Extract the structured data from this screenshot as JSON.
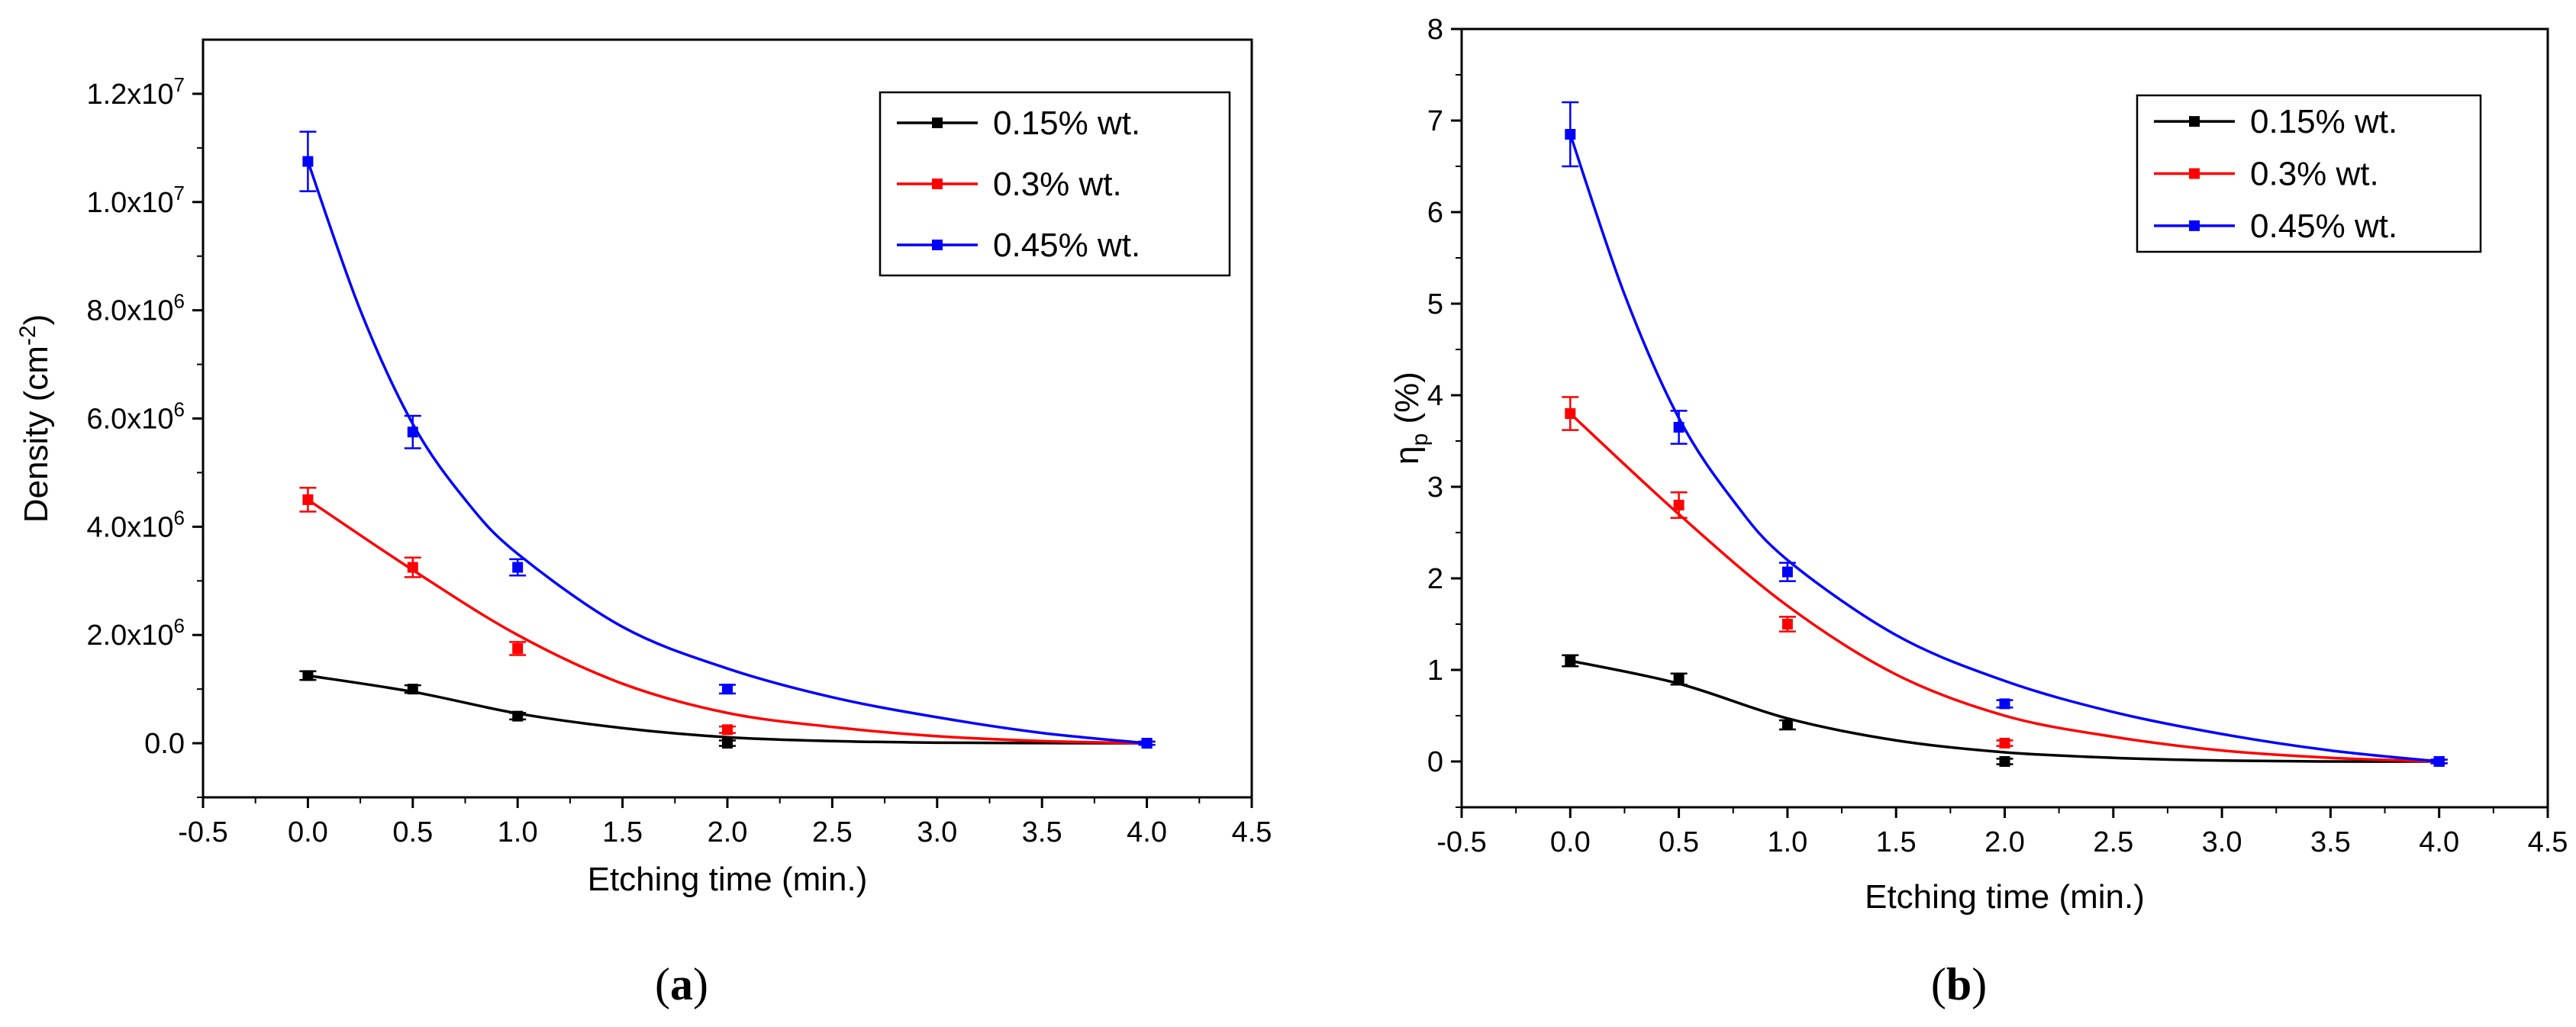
{
  "chart_data": [
    {
      "type": "scatter",
      "panel_label": "(a)",
      "title": "",
      "xlabel": "Etching time (min.)",
      "ylabel": "Density (cm",
      "ylabel_sup": "-2",
      "ylabel_close": ")",
      "xlim": [
        -0.5,
        4.5
      ],
      "ylim": [
        -1000000,
        13000000
      ],
      "x_ticks": [
        -0.5,
        0.0,
        0.5,
        1.0,
        1.5,
        2.0,
        2.5,
        3.0,
        3.5,
        4.0,
        4.5
      ],
      "x_tick_labels": [
        "-0.5",
        "0.0",
        "0.5",
        "1.0",
        "1.5",
        "2.0",
        "2.5",
        "3.0",
        "3.5",
        "4.0",
        "4.5"
      ],
      "y_ticks": [
        0,
        2000000,
        4000000,
        6000000,
        8000000,
        10000000,
        12000000
      ],
      "y_tick_labels": [
        {
          "base": "0.0",
          "sup": ""
        },
        {
          "base": "2.0x10",
          "sup": "6"
        },
        {
          "base": "4.0x10",
          "sup": "6"
        },
        {
          "base": "6.0x10",
          "sup": "6"
        },
        {
          "base": "8.0x10",
          "sup": "6"
        },
        {
          "base": "1.0x10",
          "sup": "7"
        },
        {
          "base": "1.2x10",
          "sup": "7"
        }
      ],
      "legend_position": "top-right",
      "series": [
        {
          "name": "0.15% wt.",
          "color": "#000000",
          "x": [
            0,
            0.5,
            1,
            2,
            4
          ],
          "y": [
            1250000,
            1000000,
            500000,
            0,
            0
          ],
          "err": [
            80000,
            70000,
            60000,
            50000,
            30000
          ],
          "fit_x": [
            0,
            0.5,
            1,
            1.5,
            2,
            2.5,
            3,
            3.5,
            4
          ],
          "fit_y": [
            1250000,
            950000,
            550000,
            280000,
            110000,
            40000,
            10000,
            2000,
            0
          ]
        },
        {
          "name": "0.3% wt.",
          "color": "#ff0000",
          "x": [
            0,
            0.5,
            1,
            2,
            4
          ],
          "y": [
            4500000,
            3250000,
            1750000,
            250000,
            0
          ],
          "err": [
            220000,
            180000,
            120000,
            60000,
            30000
          ],
          "fit_x": [
            0,
            0.5,
            1,
            1.5,
            2,
            2.5,
            3,
            3.5,
            4
          ],
          "fit_y": [
            4500000,
            3200000,
            2000000,
            1100000,
            560000,
            300000,
            130000,
            40000,
            0
          ]
        },
        {
          "name": "0.45% wt.",
          "color": "#0000ff",
          "x": [
            0,
            0.5,
            1,
            2,
            4
          ],
          "y": [
            10750000,
            5750000,
            3250000,
            1000000,
            0
          ],
          "err": [
            550000,
            300000,
            150000,
            80000,
            30000
          ],
          "fit_x": [
            0,
            0.25,
            0.5,
            0.75,
            1,
            1.5,
            2,
            2.5,
            3,
            3.5,
            4
          ],
          "fit_y": [
            10750000,
            8000000,
            5900000,
            4500000,
            3500000,
            2150000,
            1380000,
            850000,
            480000,
            190000,
            0
          ]
        }
      ]
    },
    {
      "type": "scatter",
      "panel_label": "(b)",
      "title": "",
      "xlabel": "Etching time (min.)",
      "ylabel": "η",
      "ylabel_sub": "p",
      "ylabel_close": " (%)",
      "xlim": [
        -0.5,
        4.5
      ],
      "ylim": [
        -0.5,
        8
      ],
      "x_ticks": [
        -0.5,
        0.0,
        0.5,
        1.0,
        1.5,
        2.0,
        2.5,
        3.0,
        3.5,
        4.0,
        4.5
      ],
      "x_tick_labels": [
        "-0.5",
        "0.0",
        "0.5",
        "1.0",
        "1.5",
        "2.0",
        "2.5",
        "3.0",
        "3.5",
        "4.0",
        "4.5"
      ],
      "y_ticks": [
        0,
        1,
        2,
        3,
        4,
        5,
        6,
        7,
        8
      ],
      "y_tick_labels": [
        {
          "base": "0",
          "sup": ""
        },
        {
          "base": "1",
          "sup": ""
        },
        {
          "base": "2",
          "sup": ""
        },
        {
          "base": "3",
          "sup": ""
        },
        {
          "base": "4",
          "sup": ""
        },
        {
          "base": "5",
          "sup": ""
        },
        {
          "base": "6",
          "sup": ""
        },
        {
          "base": "7",
          "sup": ""
        },
        {
          "base": "8",
          "sup": ""
        }
      ],
      "legend_position": "top-right",
      "series": [
        {
          "name": "0.15% wt.",
          "color": "#000000",
          "x": [
            0,
            0.5,
            1,
            2,
            4
          ],
          "y": [
            1.1,
            0.9,
            0.4,
            0,
            0
          ],
          "err": [
            0.06,
            0.06,
            0.05,
            0.03,
            0.02
          ],
          "fit_x": [
            0,
            0.5,
            1,
            1.5,
            2,
            2.5,
            3,
            3.5,
            4
          ],
          "fit_y": [
            1.1,
            0.85,
            0.47,
            0.23,
            0.1,
            0.04,
            0.01,
            0.0,
            0
          ]
        },
        {
          "name": "0.3% wt.",
          "color": "#ff0000",
          "x": [
            0,
            0.5,
            1,
            2,
            4
          ],
          "y": [
            3.8,
            2.8,
            1.5,
            0.2,
            0
          ],
          "err": [
            0.18,
            0.14,
            0.08,
            0.03,
            0.02
          ],
          "fit_x": [
            0,
            0.5,
            1,
            1.5,
            2,
            2.5,
            3,
            3.5,
            4
          ],
          "fit_y": [
            3.8,
            2.7,
            1.7,
            0.95,
            0.5,
            0.27,
            0.12,
            0.04,
            0
          ]
        },
        {
          "name": "0.45% wt.",
          "color": "#0000ff",
          "x": [
            0,
            0.5,
            1,
            2,
            4
          ],
          "y": [
            6.85,
            3.65,
            2.07,
            0.63,
            0
          ],
          "err": [
            0.35,
            0.18,
            0.1,
            0.04,
            0.02
          ],
          "fit_x": [
            0,
            0.25,
            0.5,
            0.75,
            1,
            1.5,
            2,
            2.5,
            3,
            3.5,
            4
          ],
          "fit_y": [
            6.85,
            5.1,
            3.75,
            2.85,
            2.2,
            1.38,
            0.88,
            0.54,
            0.3,
            0.12,
            0
          ]
        }
      ]
    }
  ]
}
